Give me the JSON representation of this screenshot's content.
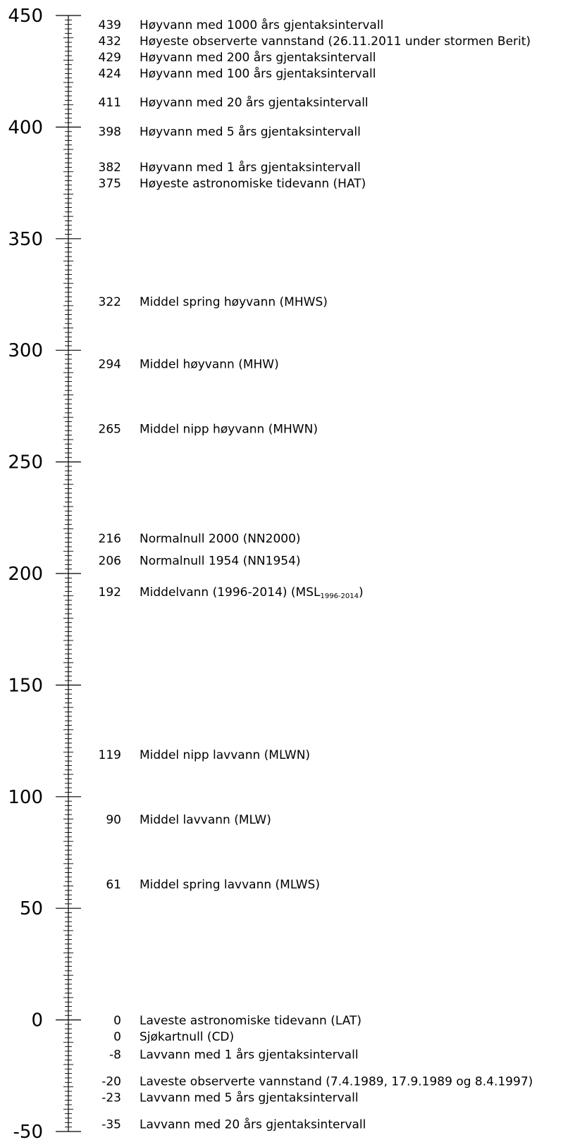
{
  "chart_data": {
    "type": "scale",
    "title": "",
    "ylabel": "",
    "ylim": [
      -50,
      450
    ],
    "major_ticks": [
      450,
      400,
      350,
      300,
      250,
      200,
      150,
      100,
      50,
      0,
      -50
    ],
    "minor_step": 2,
    "levels": [
      {
        "value": 439,
        "value_label": "439",
        "label": "Høyvann med 1000 års gjentaksintervall"
      },
      {
        "value": 432,
        "value_label": "432",
        "label": "Høyeste observerte vannstand (26.11.2011 under stormen Berit)"
      },
      {
        "value": 429,
        "value_label": "429",
        "label": "Høyvann med 200 års gjentaksintervall"
      },
      {
        "value": 424,
        "value_label": "424",
        "label": "Høyvann med 100 års gjentaksintervall"
      },
      {
        "value": 411,
        "value_label": "411",
        "label": "Høyvann med 20 års gjentaksintervall"
      },
      {
        "value": 398,
        "value_label": "398",
        "label": "Høyvann med 5 års gjentaksintervall"
      },
      {
        "value": 382,
        "value_label": "382",
        "label": "Høyvann med 1 års gjentaksintervall"
      },
      {
        "value": 375,
        "value_label": "375",
        "label": "Høyeste astronomiske tidevann (HAT)"
      },
      {
        "value": 322,
        "value_label": "322",
        "label": "Middel spring høyvann (MHWS)"
      },
      {
        "value": 294,
        "value_label": "294",
        "label": "Middel høyvann (MHW)"
      },
      {
        "value": 265,
        "value_label": "265",
        "label": "Middel nipp høyvann (MHWN)"
      },
      {
        "value": 216,
        "value_label": "216",
        "label": "Normalnull 2000 (NN2000)"
      },
      {
        "value": 206,
        "value_label": "206",
        "label": "Normalnull 1954 (NN1954)"
      },
      {
        "value": 192,
        "value_label": "192",
        "label": "Middelvann (1996-2014) (MSL",
        "sub": "1996-2014",
        "suffix": ")"
      },
      {
        "value": 119,
        "value_label": "119",
        "label": "Middel nipp lavvann (MLWN)"
      },
      {
        "value": 90,
        "value_label": "90",
        "label": "Middel lavvann (MLW)"
      },
      {
        "value": 61,
        "value_label": "61",
        "label": "Middel spring lavvann (MLWS)"
      },
      {
        "value": 0,
        "value_label": "0",
        "label": "Laveste astronomiske tidevann (LAT)"
      },
      {
        "value": 0,
        "value_label": "0",
        "label": "Sjøkartnull (CD)"
      },
      {
        "value": -8,
        "value_label": "-8",
        "label": "Lavvann med 1 års gjentaksintervall"
      },
      {
        "value": -20,
        "value_label": "-20",
        "label": "Laveste observerte vannstand (7.4.1989, 17.9.1989 og 8.4.1997)"
      },
      {
        "value": -23,
        "value_label": "-23",
        "label": "Lavvann med 5 års gjentaksintervall"
      },
      {
        "value": -35,
        "value_label": "-35",
        "label": "Lavvann med 20 års gjentaksintervall"
      }
    ]
  }
}
